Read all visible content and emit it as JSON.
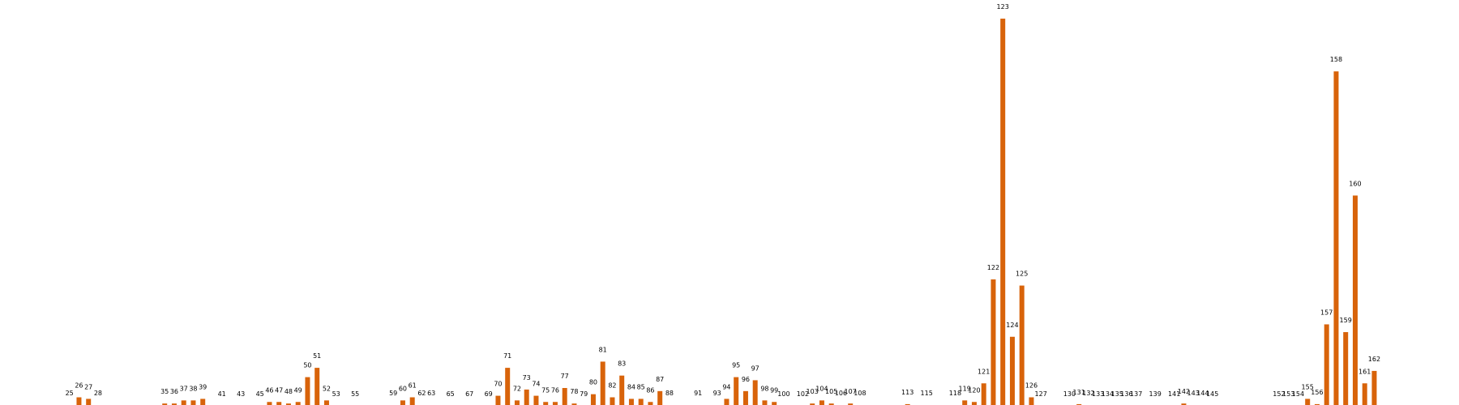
{
  "chart_data": {
    "type": "bar",
    "color": "#d8630a",
    "title": "",
    "xlabel": "",
    "ylabel": "",
    "axes_visible": false,
    "grid": false,
    "ylim": [
      0,
      125
    ],
    "categories": [
      25,
      26,
      27,
      28,
      35,
      36,
      37,
      38,
      39,
      41,
      43,
      45,
      46,
      47,
      48,
      49,
      50,
      51,
      52,
      53,
      55,
      59,
      60,
      61,
      62,
      63,
      65,
      67,
      69,
      70,
      71,
      72,
      73,
      74,
      75,
      76,
      77,
      78,
      79,
      80,
      81,
      82,
      83,
      84,
      85,
      86,
      87,
      88,
      91,
      93,
      94,
      95,
      96,
      97,
      98,
      99,
      100,
      102,
      103,
      104,
      105,
      106,
      107,
      108,
      113,
      115,
      118,
      119,
      120,
      121,
      122,
      123,
      124,
      125,
      126,
      127,
      130,
      131,
      132,
      133,
      134,
      135,
      136,
      137,
      139,
      141,
      142,
      143,
      144,
      145,
      152,
      153,
      154,
      155,
      156,
      157,
      158,
      159,
      160,
      161,
      162
    ],
    "values": [
      0.5,
      3,
      2.5,
      0.5,
      1,
      1,
      2,
      2,
      2.5,
      0.2,
      0.2,
      0.2,
      1.5,
      1.5,
      1,
      1.5,
      9.5,
      12.5,
      2,
      0.3,
      0.3,
      0.5,
      2,
      3,
      0.5,
      0.5,
      0.2,
      0.2,
      0.3,
      3.5,
      12.5,
      2,
      5.5,
      3.5,
      1.5,
      1.5,
      6,
      1,
      0.3,
      4,
      14.5,
      3,
      10,
      2.5,
      2.5,
      1.5,
      5,
      0.5,
      0.5,
      0.5,
      2.5,
      9.5,
      5,
      8.5,
      2,
      1.5,
      0.3,
      0.3,
      1,
      2,
      1,
      0.5,
      1,
      0.5,
      0.8,
      0.5,
      0.5,
      2,
      1.5,
      7.5,
      41,
      125,
      22.5,
      39,
      3,
      0.3,
      0.3,
      0.8,
      0.5,
      0.3,
      0.3,
      0.3,
      0.3,
      0.3,
      0.3,
      0.3,
      1,
      0.5,
      0.5,
      0.3,
      0.3,
      0.3,
      0.3,
      2.5,
      0.8,
      26.5,
      108,
      24,
      68,
      7.5,
      11.5
    ]
  }
}
